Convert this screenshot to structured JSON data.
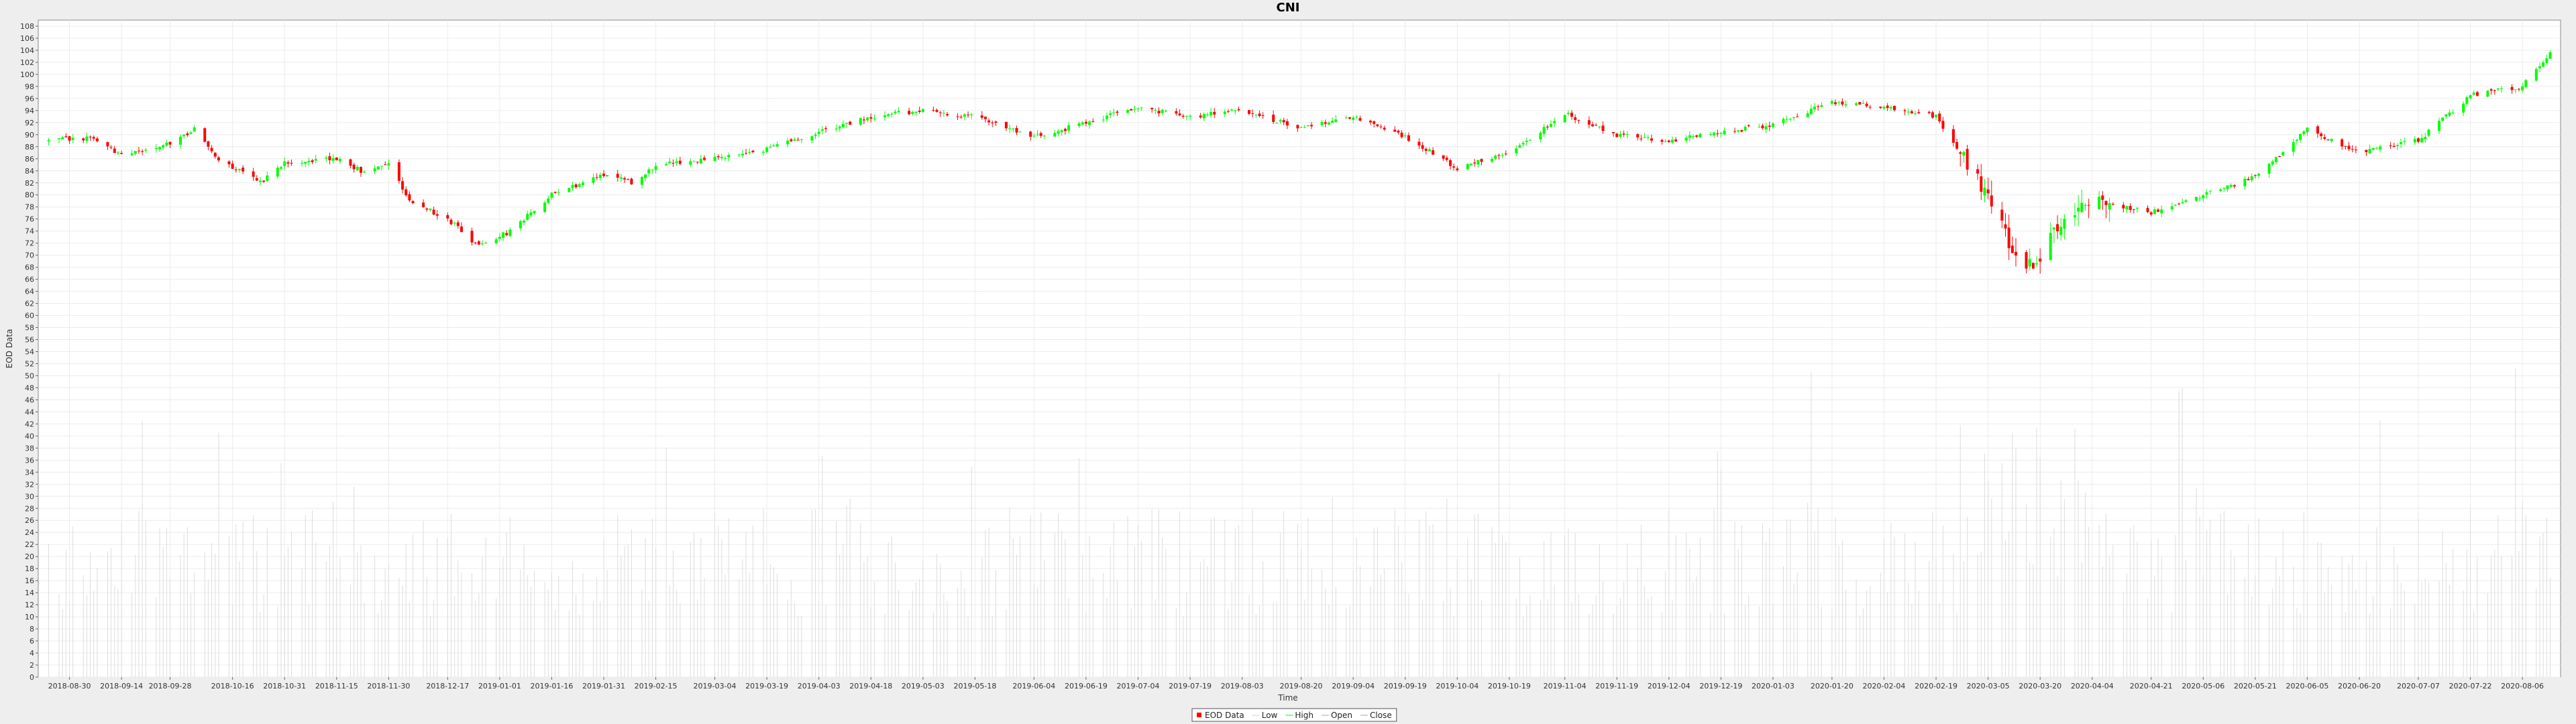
{
  "chart_data": {
    "type": "candlestick",
    "title": "CNI",
    "xlabel": "Time",
    "ylabel": "EOD Data",
    "ylim": [
      0,
      109
    ],
    "y_tick_step": 2,
    "grid": true,
    "legend_position": "bottom-center",
    "x_tick_labels": [
      "2018-08-30",
      "2018-09-14",
      "2018-09-28",
      "2018-10-16",
      "2018-10-31",
      "2018-11-15",
      "2018-11-30",
      "2018-12-17",
      "2019-01-01",
      "2019-01-16",
      "2019-01-31",
      "2019-02-15",
      "2019-03-04",
      "2019-03-19",
      "2019-04-03",
      "2019-04-18",
      "2019-05-03",
      "2019-05-18",
      "2019-06-04",
      "2019-06-19",
      "2019-07-04",
      "2019-07-19",
      "2019-08-03",
      "2019-08-20",
      "2019-09-04",
      "2019-09-19",
      "2019-10-04",
      "2019-10-19",
      "2019-11-04",
      "2019-11-19",
      "2019-12-04",
      "2019-12-19",
      "2020-01-03",
      "2020-01-20",
      "2020-02-04",
      "2020-02-19",
      "2020-03-05",
      "2020-03-20",
      "2020-04-04",
      "2020-04-21",
      "2020-05-06",
      "2020-05-21",
      "2020-06-05",
      "2020-06-20",
      "2020-07-07",
      "2020-07-22",
      "2020-08-06"
    ],
    "close_path": [
      [
        "2018-08-24",
        89
      ],
      [
        "2018-09-05",
        89.5
      ],
      [
        "2018-09-14",
        86.5
      ],
      [
        "2018-09-28",
        88.5
      ],
      [
        "2018-10-05",
        91
      ],
      [
        "2018-10-12",
        86
      ],
      [
        "2018-10-24",
        82
      ],
      [
        "2018-10-31",
        85.5
      ],
      [
        "2018-11-15",
        86
      ],
      [
        "2018-11-22",
        84
      ],
      [
        "2018-11-30",
        85.5
      ],
      [
        "2018-12-06",
        79
      ],
      [
        "2018-12-17",
        76
      ],
      [
        "2018-12-26",
        71.5
      ],
      [
        "2019-01-04",
        74
      ],
      [
        "2019-01-16",
        80
      ],
      [
        "2019-01-31",
        83.5
      ],
      [
        "2019-02-08",
        82
      ],
      [
        "2019-02-15",
        85
      ],
      [
        "2019-03-04",
        86
      ],
      [
        "2019-03-19",
        87.5
      ],
      [
        "2019-04-03",
        90.5
      ],
      [
        "2019-04-18",
        93
      ],
      [
        "2019-05-03",
        94
      ],
      [
        "2019-05-18",
        93
      ],
      [
        "2019-06-04",
        89.5
      ],
      [
        "2019-06-19",
        92
      ],
      [
        "2019-07-04",
        94.5
      ],
      [
        "2019-07-19",
        93
      ],
      [
        "2019-08-03",
        94
      ],
      [
        "2019-08-20",
        91
      ],
      [
        "2019-09-04",
        93
      ],
      [
        "2019-09-19",
        89.5
      ],
      [
        "2019-10-04",
        84.5
      ],
      [
        "2019-10-19",
        87
      ],
      [
        "2019-11-04",
        93.5
      ],
      [
        "2019-11-19",
        90
      ],
      [
        "2019-12-04",
        89
      ],
      [
        "2019-12-19",
        90.5
      ],
      [
        "2020-01-03",
        91.5
      ],
      [
        "2020-01-20",
        95.5
      ],
      [
        "2020-02-04",
        94.5
      ],
      [
        "2020-02-19",
        93
      ],
      [
        "2020-02-27",
        86
      ],
      [
        "2020-03-05",
        80
      ],
      [
        "2020-03-12",
        71
      ],
      [
        "2020-03-18",
        68
      ],
      [
        "2020-03-25",
        75
      ],
      [
        "2020-04-04",
        79
      ],
      [
        "2020-04-21",
        77
      ],
      [
        "2020-05-06",
        80
      ],
      [
        "2020-05-21",
        83
      ],
      [
        "2020-06-05",
        91
      ],
      [
        "2020-06-20",
        87
      ],
      [
        "2020-07-07",
        89
      ],
      [
        "2020-07-22",
        96.5
      ],
      [
        "2020-08-06",
        98
      ],
      [
        "2020-08-14",
        103.5
      ]
    ],
    "series": [
      {
        "name": "EOD Data",
        "color": "#ff0000"
      },
      {
        "name": "Low",
        "color": "#cccccc"
      },
      {
        "name": "High",
        "color": "#00ff00"
      },
      {
        "name": "Open",
        "color": "#aaaaaa"
      },
      {
        "name": "Close",
        "color": "#aaaaaa"
      }
    ],
    "colors": {
      "up": "#00ff00",
      "down": "#ff0000",
      "volume": "#dddddd",
      "grid": "#ececec",
      "plot_bg": "#ffffff",
      "page_bg": "#eeeeee"
    }
  }
}
